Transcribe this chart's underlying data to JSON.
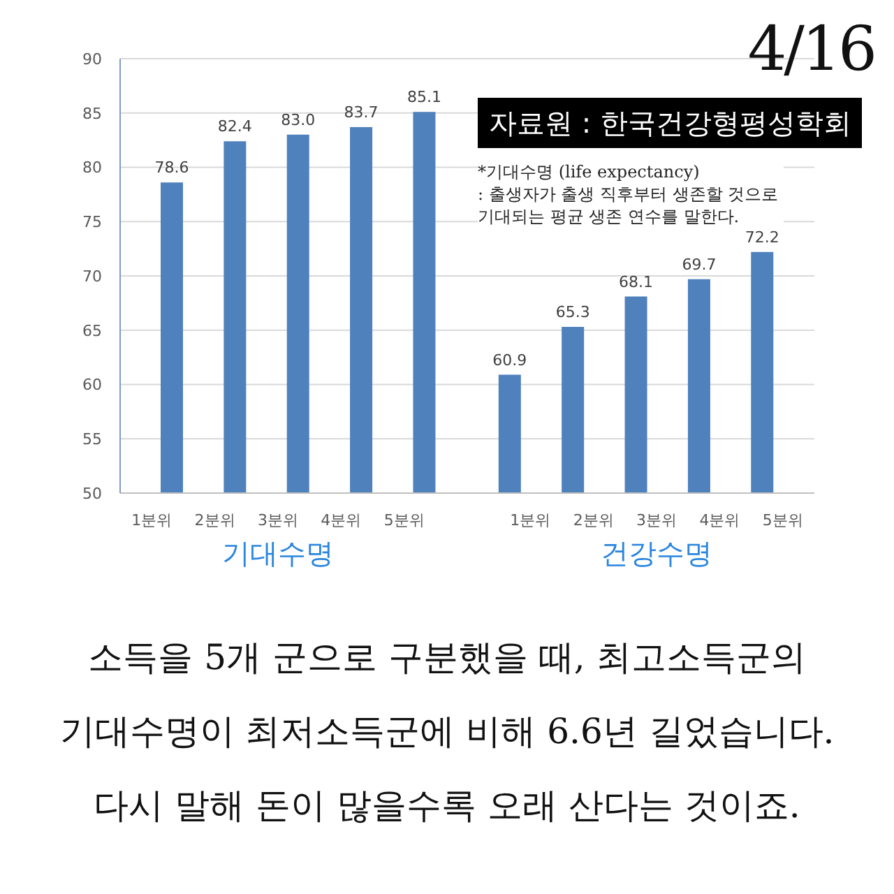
{
  "chart_data": {
    "type": "bar",
    "categories": [
      "1분위",
      "2분위",
      "3분위",
      "4분위",
      "5분위",
      null,
      "1분위",
      "2분위",
      "3분위",
      "4분위",
      "5분위"
    ],
    "series": [
      {
        "name": "기대수명",
        "color": "#4f81bd",
        "values": [
          78.6,
          82.4,
          83.0,
          83.7,
          85.1,
          null,
          null,
          null,
          null,
          null,
          null
        ],
        "value_labels": [
          "78.6",
          "82.4",
          "83.0",
          "83.7",
          "85.1",
          null,
          null,
          null,
          null,
          null,
          null
        ]
      },
      {
        "name": "건강수명",
        "color": "#4f81bd",
        "values": [
          null,
          null,
          null,
          null,
          null,
          null,
          60.9,
          65.3,
          68.1,
          69.7,
          72.2
        ],
        "value_labels": [
          null,
          null,
          null,
          null,
          null,
          null,
          "60.9",
          "65.3",
          "68.1",
          "69.7",
          "72.2"
        ]
      }
    ],
    "ylim": [
      50,
      90
    ],
    "yticks": [
      50,
      55,
      60,
      65,
      70,
      75,
      80,
      85,
      90
    ],
    "grid": "y",
    "annotations": [
      "4/16",
      "자료원 : 한국건강형평성학회",
      "*기대수명 (life expectancy)\n: 출생자가 출생 직후부터 생존할 것으로\n기대되는 평균 생존 연수를 말한다.",
      "소득을 5개 군으로 구분했을 때, 최고소득군의\n기대수명이 최저소득군에 비해 6.6년 길었습니다.\n다시 말해 돈이 많을수록 오래 산다는 것이죠."
    ]
  }
}
